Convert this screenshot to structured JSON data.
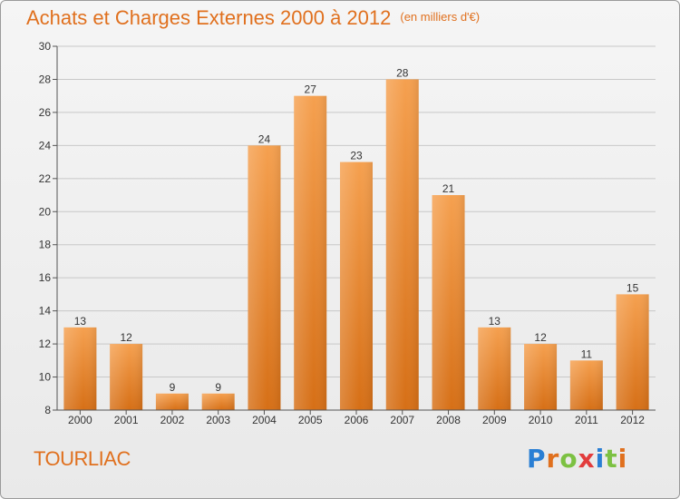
{
  "header": {
    "title": "Achats et Charges Externes 2000 à 2012",
    "subtitle": "(en milliers d'€)"
  },
  "footer": {
    "commune": "TOURLIAC",
    "logo_letters": [
      {
        "ch": "P",
        "color": "#2a7fd4"
      },
      {
        "ch": "r",
        "color": "#e0701e"
      },
      {
        "ch": "o",
        "color": "#7cc142"
      },
      {
        "ch": "x",
        "color": "#e23c3c"
      },
      {
        "ch": "i",
        "color": "#2a7fd4"
      },
      {
        "ch": "t",
        "color": "#7cc142"
      },
      {
        "ch": "i",
        "color": "#e0701e"
      }
    ]
  },
  "chart_data": {
    "type": "bar",
    "categories": [
      "2000",
      "2001",
      "2002",
      "2003",
      "2004",
      "2005",
      "2006",
      "2007",
      "2008",
      "2009",
      "2010",
      "2011",
      "2012"
    ],
    "values": [
      13,
      12,
      9,
      9,
      24,
      27,
      23,
      28,
      21,
      13,
      12,
      11,
      15
    ],
    "ylim": [
      8,
      30
    ],
    "yticks": [
      8,
      10,
      12,
      14,
      16,
      18,
      20,
      22,
      24,
      26,
      28,
      30
    ],
    "grid": true,
    "bar_color_top": "#f5a04f",
    "bar_color_bottom": "#d66f16"
  }
}
